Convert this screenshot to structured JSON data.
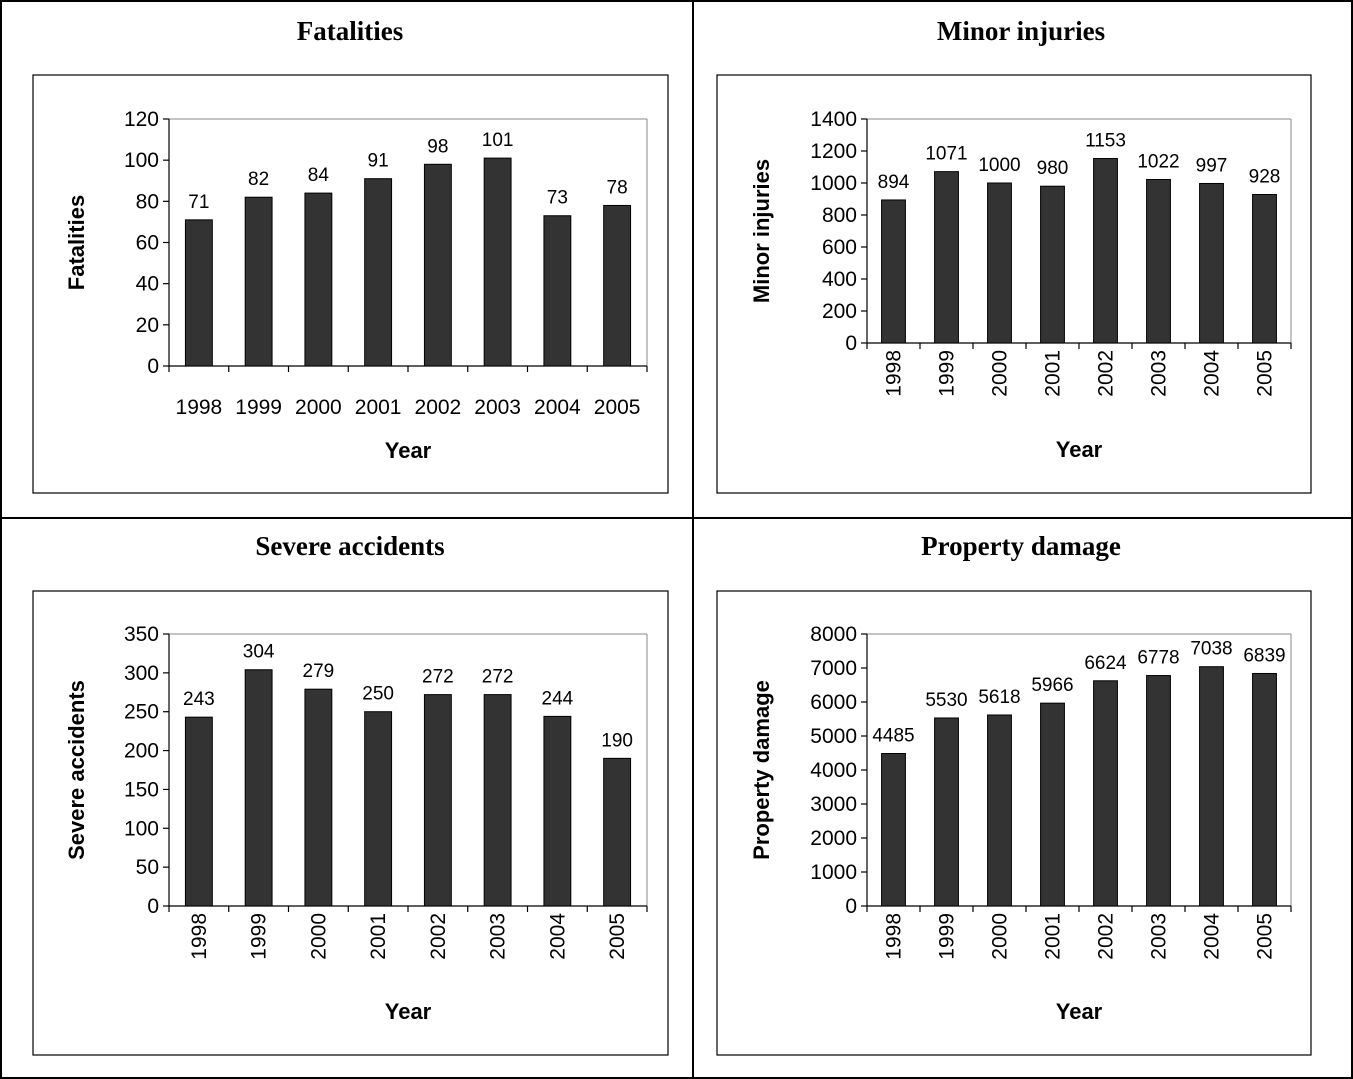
{
  "chart_data": [
    {
      "type": "bar",
      "title": "Fatalities",
      "categories": [
        "1998",
        "1999",
        "2000",
        "2001",
        "2002",
        "2003",
        "2004",
        "2005"
      ],
      "values": [
        71,
        82,
        84,
        91,
        98,
        101,
        73,
        78
      ],
      "xlabel": "Year",
      "ylabel": "Fatalities",
      "ylim": [
        0,
        120
      ],
      "yticks": [
        0,
        20,
        40,
        60,
        80,
        100,
        120
      ],
      "rotated_x_labels": false,
      "bar_color": "#333333"
    },
    {
      "type": "bar",
      "title": "Minor injuries",
      "categories": [
        "1998",
        "1999",
        "2000",
        "2001",
        "2002",
        "2003",
        "2004",
        "2005"
      ],
      "values": [
        894,
        1071,
        1000,
        980,
        1153,
        1022,
        997,
        928
      ],
      "xlabel": "Year",
      "ylabel": "Minor injuries",
      "ylim": [
        0,
        1400
      ],
      "yticks": [
        0,
        200,
        400,
        600,
        800,
        1000,
        1200,
        1400
      ],
      "rotated_x_labels": true,
      "bar_color": "#333333"
    },
    {
      "type": "bar",
      "title": "Severe accidents",
      "categories": [
        "1998",
        "1999",
        "2000",
        "2001",
        "2002",
        "2003",
        "2004",
        "2005"
      ],
      "values": [
        243,
        304,
        279,
        250,
        272,
        272,
        244,
        190
      ],
      "xlabel": "Year",
      "ylabel": "Severe accidents",
      "ylim": [
        0,
        350
      ],
      "yticks": [
        0,
        50,
        100,
        150,
        200,
        250,
        300,
        350
      ],
      "rotated_x_labels": true,
      "bar_color": "#333333"
    },
    {
      "type": "bar",
      "title": "Property damage",
      "categories": [
        "1998",
        "1999",
        "2000",
        "2001",
        "2002",
        "2003",
        "2004",
        "2005"
      ],
      "values": [
        4485,
        5530,
        5618,
        5966,
        6624,
        6778,
        7038,
        6839
      ],
      "xlabel": "Year",
      "ylabel": "Property damage",
      "ylim": [
        0,
        8000
      ],
      "yticks": [
        0,
        1000,
        2000,
        3000,
        4000,
        5000,
        6000,
        7000,
        8000
      ],
      "rotated_x_labels": true,
      "bar_color": "#333333"
    }
  ]
}
